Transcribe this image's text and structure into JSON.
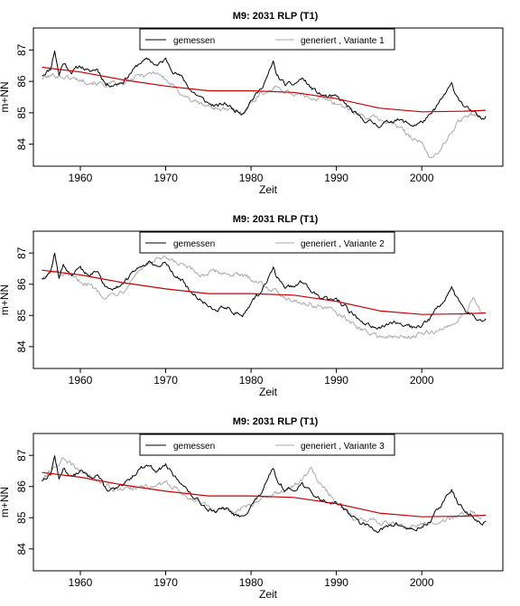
{
  "chart_data": [
    {
      "type": "line",
      "title": "M9: 2031 RLP (T1)",
      "xlabel": "Zeit",
      "ylabel": "m+NN",
      "xlim": [
        1954.5,
        2009.5
      ],
      "ylim": [
        83.3,
        87.7
      ],
      "xticks": [
        1960,
        1970,
        1980,
        1990,
        2000
      ],
      "yticks": [
        84,
        85,
        86,
        87
      ],
      "legend_position": "top-center",
      "series": [
        {
          "name": "gemessen",
          "color": "#000000",
          "x": [
            1955.5,
            1956.5,
            1957,
            1957.5,
            1958,
            1959,
            1960,
            1961,
            1962,
            1963,
            1964,
            1965,
            1966,
            1967,
            1968,
            1969,
            1970,
            1971,
            1972,
            1973,
            1974,
            1975,
            1976,
            1977,
            1978,
            1979,
            1980,
            1981,
            1982,
            1982.6,
            1983,
            1984,
            1985,
            1986,
            1987,
            1988,
            1989,
            1990,
            1991,
            1992,
            1993,
            1994,
            1995,
            1996,
            1997,
            1998,
            1999,
            2000,
            2001,
            2002,
            2003,
            2003.5,
            2004,
            2005,
            2006,
            2007,
            2007.5
          ],
          "y": [
            86.2,
            86.4,
            87.0,
            86.2,
            86.6,
            86.3,
            86.5,
            86.3,
            86.4,
            85.9,
            85.9,
            86.0,
            86.3,
            86.6,
            86.7,
            86.5,
            86.7,
            86.3,
            86.1,
            85.7,
            85.5,
            85.3,
            85.2,
            85.3,
            85.1,
            85.0,
            85.4,
            85.7,
            86.2,
            86.6,
            86.2,
            85.9,
            85.9,
            86.1,
            85.8,
            85.6,
            85.5,
            85.5,
            85.3,
            85.0,
            84.8,
            84.7,
            84.6,
            84.7,
            84.8,
            84.7,
            84.6,
            84.7,
            84.9,
            85.3,
            85.7,
            85.9,
            85.6,
            85.2,
            85.0,
            84.8,
            84.9
          ]
        },
        {
          "name": "generiert , Variante 1",
          "color": "#aaaaaa",
          "x": [
            1955.5,
            1957,
            1959,
            1961,
            1963,
            1965,
            1967,
            1969,
            1971,
            1973,
            1975,
            1977,
            1979,
            1981,
            1983,
            1985,
            1987,
            1989,
            1991,
            1993,
            1995,
            1997,
            1999,
            2000,
            2001,
            2002,
            2003,
            2004,
            2005,
            2006,
            2007
          ],
          "y": [
            86.1,
            86.2,
            86.1,
            86.0,
            85.9,
            85.9,
            86.2,
            86.3,
            85.8,
            85.4,
            85.2,
            85.1,
            85.0,
            85.6,
            85.8,
            85.6,
            85.5,
            85.4,
            85.2,
            84.9,
            84.8,
            84.6,
            84.2,
            84.0,
            83.6,
            83.7,
            84.2,
            84.6,
            84.9,
            85.0,
            84.9
          ]
        },
        {
          "name": "",
          "color": "#cc0000",
          "x": [
            1955.5,
            1960,
            1965,
            1970,
            1975,
            1980,
            1985,
            1990,
            1995,
            2000,
            2005,
            2007.5
          ],
          "y": [
            86.45,
            86.3,
            86.05,
            85.85,
            85.7,
            85.7,
            85.65,
            85.45,
            85.15,
            85.03,
            85.05,
            85.08
          ]
        }
      ]
    },
    {
      "type": "line",
      "title": "M9: 2031 RLP (T1)",
      "xlabel": "Zeit",
      "ylabel": "m+NN",
      "xlim": [
        1954.5,
        2009.5
      ],
      "ylim": [
        83.3,
        87.7
      ],
      "xticks": [
        1960,
        1970,
        1980,
        1990,
        2000
      ],
      "yticks": [
        84,
        85,
        86,
        87
      ],
      "legend_position": "top-center",
      "series": [
        {
          "name": "gemessen",
          "color": "#000000",
          "x": [
            1955.5,
            1956.5,
            1957,
            1957.5,
            1958,
            1959,
            1960,
            1961,
            1962,
            1963,
            1964,
            1965,
            1966,
            1967,
            1968,
            1969,
            1970,
            1971,
            1972,
            1973,
            1974,
            1975,
            1976,
            1977,
            1978,
            1979,
            1980,
            1981,
            1982,
            1982.6,
            1983,
            1984,
            1985,
            1986,
            1987,
            1988,
            1989,
            1990,
            1991,
            1992,
            1993,
            1994,
            1995,
            1996,
            1997,
            1998,
            1999,
            2000,
            2001,
            2002,
            2003,
            2003.5,
            2004,
            2005,
            2006,
            2007,
            2007.5
          ],
          "y": [
            86.2,
            86.4,
            87.0,
            86.2,
            86.6,
            86.3,
            86.5,
            86.3,
            86.4,
            85.9,
            85.9,
            86.0,
            86.3,
            86.6,
            86.7,
            86.5,
            86.7,
            86.3,
            86.1,
            85.7,
            85.5,
            85.3,
            85.2,
            85.3,
            85.1,
            85.0,
            85.4,
            85.7,
            86.2,
            86.6,
            86.2,
            85.9,
            85.9,
            86.1,
            85.8,
            85.6,
            85.5,
            85.5,
            85.3,
            85.0,
            84.8,
            84.7,
            84.6,
            84.7,
            84.8,
            84.7,
            84.6,
            84.7,
            84.9,
            85.3,
            85.7,
            85.9,
            85.6,
            85.2,
            85.0,
            84.8,
            84.9
          ]
        },
        {
          "name": "generiert , Variante 2",
          "color": "#aaaaaa",
          "x": [
            1955.5,
            1957,
            1959,
            1961,
            1963,
            1965,
            1967,
            1969,
            1970,
            1972,
            1974,
            1976,
            1978,
            1980,
            1982,
            1984,
            1986,
            1988,
            1990,
            1992,
            1994,
            1996,
            1998,
            2000,
            2002,
            2004,
            2005,
            2006,
            2007
          ],
          "y": [
            86.2,
            86.4,
            86.2,
            86.0,
            85.6,
            85.8,
            86.5,
            86.8,
            86.8,
            86.6,
            86.3,
            86.4,
            86.3,
            86.2,
            85.9,
            85.6,
            85.4,
            85.3,
            85.1,
            84.7,
            84.4,
            84.3,
            84.3,
            84.4,
            84.5,
            84.8,
            85.1,
            85.5,
            85.1
          ]
        },
        {
          "name": "",
          "color": "#cc0000",
          "x": [
            1955.5,
            1960,
            1965,
            1970,
            1975,
            1980,
            1985,
            1990,
            1995,
            2000,
            2005,
            2007.5
          ],
          "y": [
            86.45,
            86.3,
            86.05,
            85.85,
            85.7,
            85.7,
            85.65,
            85.45,
            85.15,
            85.03,
            85.05,
            85.08
          ]
        }
      ]
    },
    {
      "type": "line",
      "title": "M9: 2031 RLP (T1)",
      "xlabel": "Zeit",
      "ylabel": "m+NN",
      "xlim": [
        1954.5,
        2009.5
      ],
      "ylim": [
        83.3,
        87.7
      ],
      "xticks": [
        1960,
        1970,
        1980,
        1990,
        2000
      ],
      "yticks": [
        84,
        85,
        86,
        87
      ],
      "legend_position": "top-center",
      "series": [
        {
          "name": "gemessen",
          "color": "#000000",
          "x": [
            1955.5,
            1956.5,
            1957,
            1957.5,
            1958,
            1959,
            1960,
            1961,
            1962,
            1963,
            1964,
            1965,
            1966,
            1967,
            1968,
            1969,
            1970,
            1971,
            1972,
            1973,
            1974,
            1975,
            1976,
            1977,
            1978,
            1979,
            1980,
            1981,
            1982,
            1982.6,
            1983,
            1984,
            1985,
            1986,
            1987,
            1988,
            1989,
            1990,
            1991,
            1992,
            1993,
            1994,
            1995,
            1996,
            1997,
            1998,
            1999,
            2000,
            2001,
            2002,
            2003,
            2003.5,
            2004,
            2005,
            2006,
            2007,
            2007.5
          ],
          "y": [
            86.2,
            86.4,
            87.0,
            86.2,
            86.6,
            86.3,
            86.5,
            86.3,
            86.4,
            85.9,
            85.9,
            86.0,
            86.3,
            86.6,
            86.7,
            86.5,
            86.7,
            86.3,
            86.1,
            85.7,
            85.5,
            85.3,
            85.2,
            85.3,
            85.1,
            85.0,
            85.4,
            85.7,
            86.2,
            86.6,
            86.2,
            85.9,
            85.9,
            86.1,
            85.8,
            85.6,
            85.5,
            85.5,
            85.3,
            85.0,
            84.8,
            84.7,
            84.6,
            84.7,
            84.8,
            84.7,
            84.6,
            84.7,
            84.9,
            85.3,
            85.7,
            85.9,
            85.6,
            85.2,
            85.0,
            84.8,
            84.9
          ]
        },
        {
          "name": "generiert , Variante 3",
          "color": "#aaaaaa",
          "x": [
            1955.5,
            1957,
            1958,
            1960,
            1962,
            1964,
            1966,
            1968,
            1970,
            1972,
            1974,
            1976,
            1978,
            1980,
            1982,
            1984,
            1986,
            1987,
            1988,
            1989,
            1990,
            1992,
            1994,
            1996,
            1998,
            2000,
            2002,
            2004,
            2006,
            2007
          ],
          "y": [
            86.2,
            86.6,
            86.9,
            86.5,
            86.2,
            85.9,
            85.9,
            86.0,
            86.1,
            85.8,
            85.5,
            85.3,
            85.2,
            85.4,
            85.7,
            85.9,
            86.2,
            86.6,
            86.1,
            85.8,
            85.5,
            85.0,
            84.9,
            84.8,
            84.7,
            84.8,
            84.9,
            85.0,
            85.2,
            85.0
          ]
        },
        {
          "name": "",
          "color": "#cc0000",
          "x": [
            1955.5,
            1960,
            1965,
            1970,
            1975,
            1980,
            1985,
            1990,
            1995,
            2000,
            2005,
            2007.5
          ],
          "y": [
            86.45,
            86.3,
            86.05,
            85.85,
            85.7,
            85.7,
            85.65,
            85.45,
            85.15,
            85.03,
            85.05,
            85.08
          ]
        }
      ]
    }
  ]
}
